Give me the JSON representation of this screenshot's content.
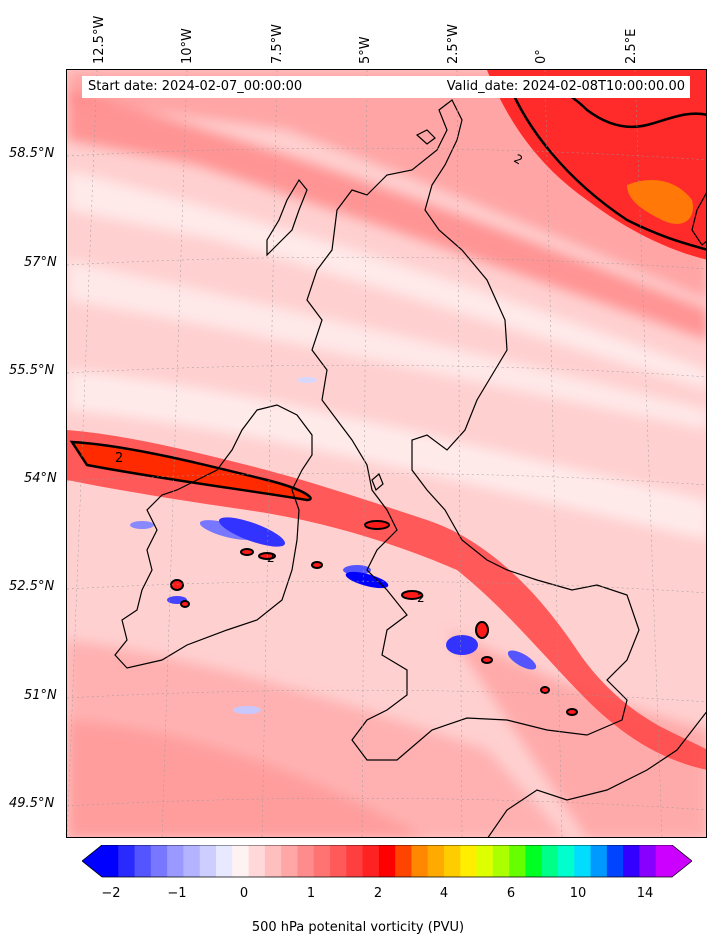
{
  "map": {
    "start_date": "Start date: 2024-02-07_00:00:00",
    "valid_date": "Valid_date: 2024-02-08T10:00:00.00",
    "lon_labels": [
      "12.5°W",
      "10°W",
      "7.5°W",
      "5°W",
      "2.5°W",
      "0°",
      "2.5°E"
    ],
    "lat_labels": [
      "58.5°N",
      "57°N",
      "55.5°N",
      "54°N",
      "52.5°N",
      "51°N",
      "49.5°N"
    ],
    "contour_labels": [
      "2",
      "2",
      "2",
      "2"
    ],
    "field": "500 hPa potenital vorticity (PVU)"
  },
  "colorbar": {
    "label": "500 hPa potenital vorticity (PVU)",
    "ticks": [
      "−2",
      "−1",
      "0",
      "1",
      "2",
      "4",
      "6",
      "10",
      "14"
    ],
    "colors": [
      "#0000ff",
      "#2a2aff",
      "#5555ff",
      "#7777ff",
      "#9999ff",
      "#b3b3ff",
      "#cdcdff",
      "#e8e8ff",
      "#fff2f2",
      "#ffd9d9",
      "#ffbfbf",
      "#ffa6a6",
      "#ff8c8c",
      "#ff7373",
      "#ff5959",
      "#ff3f3f",
      "#ff2222",
      "#ff0000",
      "#ff4400",
      "#ff8800",
      "#ffaa00",
      "#ffcc00",
      "#ffee00",
      "#ddff00",
      "#aaff00",
      "#66ff00",
      "#00ff22",
      "#00ff88",
      "#00ffcc",
      "#00ddff",
      "#0099ff",
      "#0044ff",
      "#3300ff",
      "#8800ff",
      "#cc00ff"
    ],
    "extend": "both"
  }
}
